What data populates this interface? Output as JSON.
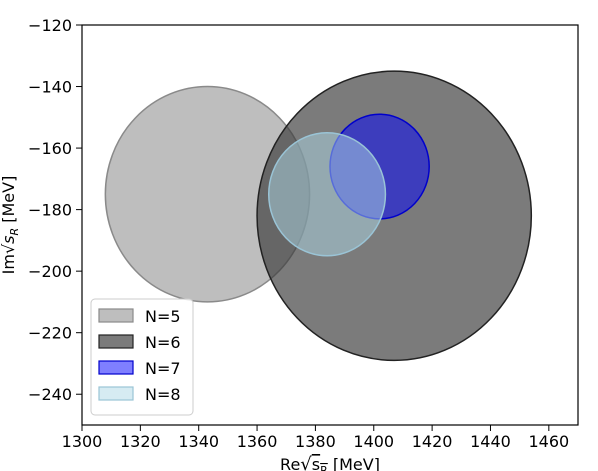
{
  "chart_data": {
    "type": "scatter",
    "xlabel": "Re√s_R  [MeV]",
    "ylabel": "Im√s_R  [MeV]",
    "xlim": [
      1300,
      1470
    ],
    "ylim": [
      -250,
      -120
    ],
    "xticks": [
      1300,
      1320,
      1340,
      1360,
      1380,
      1400,
      1420,
      1440,
      1460
    ],
    "yticks": [
      -120,
      -140,
      -160,
      -180,
      -200,
      -220,
      -240
    ],
    "legend_position": "lower-left",
    "series": [
      {
        "name": "N=5",
        "cx": 1343,
        "cy": -175,
        "r": 35,
        "fill": "#a8a8a8",
        "opacity": 0.75,
        "stroke": "#8a8a8a"
      },
      {
        "name": "N=6",
        "cx": 1407,
        "cy": -182,
        "r": 47,
        "fill": "#3d3d3d",
        "opacity": 0.68,
        "stroke": "#222222"
      },
      {
        "name": "N=7",
        "cx": 1402,
        "cy": -166,
        "r": 17,
        "fill": "#0000ff",
        "opacity": 0.5,
        "stroke": "#0000cc"
      },
      {
        "name": "N=8",
        "cx": 1384,
        "cy": -175,
        "r": 20,
        "fill": "#add8e6",
        "opacity": 0.5,
        "stroke": "#9ac4d6"
      }
    ]
  }
}
